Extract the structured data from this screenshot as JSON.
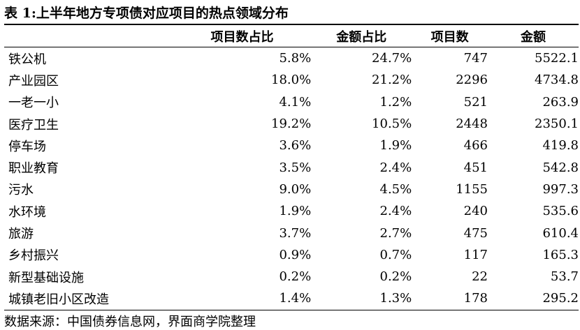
{
  "header": {
    "title": "表 1:上半年地方专项债对应项目的热点领域分布"
  },
  "table": {
    "columns": [
      "",
      "项目数占比",
      "金额占比",
      "项目数",
      "金额"
    ],
    "rows": [
      [
        "铁公机",
        "5.8%",
        "24.7%",
        "747",
        "5522.1"
      ],
      [
        "产业园区",
        "18.0%",
        "21.2%",
        "2296",
        "4734.8"
      ],
      [
        "一老一小",
        "4.1%",
        "1.2%",
        "521",
        "263.9"
      ],
      [
        "医疗卫生",
        "19.2%",
        "10.5%",
        "2448",
        "2350.1"
      ],
      [
        "停车场",
        "3.6%",
        "1.9%",
        "466",
        "419.8"
      ],
      [
        "职业教育",
        "3.5%",
        "2.4%",
        "451",
        "542.8"
      ],
      [
        "污水",
        "9.0%",
        "4.5%",
        "1155",
        "997.3"
      ],
      [
        "水环境",
        "1.9%",
        "2.4%",
        "240",
        "535.6"
      ],
      [
        "旅游",
        "3.7%",
        "2.7%",
        "475",
        "610.4"
      ],
      [
        "乡村振兴",
        "0.9%",
        "0.7%",
        "117",
        "165.3"
      ],
      [
        "新型基础设施",
        "0.2%",
        "0.2%",
        "22",
        "53.7"
      ],
      [
        "城镇老旧小区改造",
        "1.4%",
        "1.3%",
        "178",
        "295.2"
      ]
    ]
  },
  "footer": {
    "source": "数据来源：中国债券信息网，界面商学院整理"
  }
}
